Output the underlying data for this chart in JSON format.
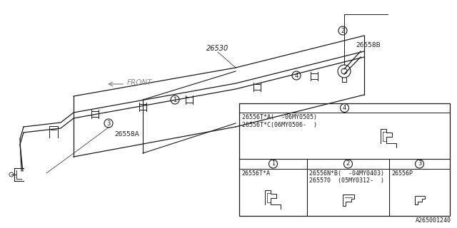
{
  "bg_color": "#ffffff",
  "line_color": "#1a1a1a",
  "part_number_label": "26530",
  "part_26558B": "26558B",
  "part_26558A": "26558A",
  "front_label": "FRONT",
  "diagram_code": "A265001240",
  "table_item1": "26556T*A",
  "table_item2": "26556N*B(  -04MY0403)\n265570  (05MY0312-  )",
  "table_item3": "26556P",
  "table_item4_line1": "26556T*A(  -06MY0505)",
  "table_item4_line2": "26556T*C(06MY0506-  )",
  "pipe_color": "#1a1a1a",
  "text_color": "#1a1a1a",
  "label_color": "#555555"
}
